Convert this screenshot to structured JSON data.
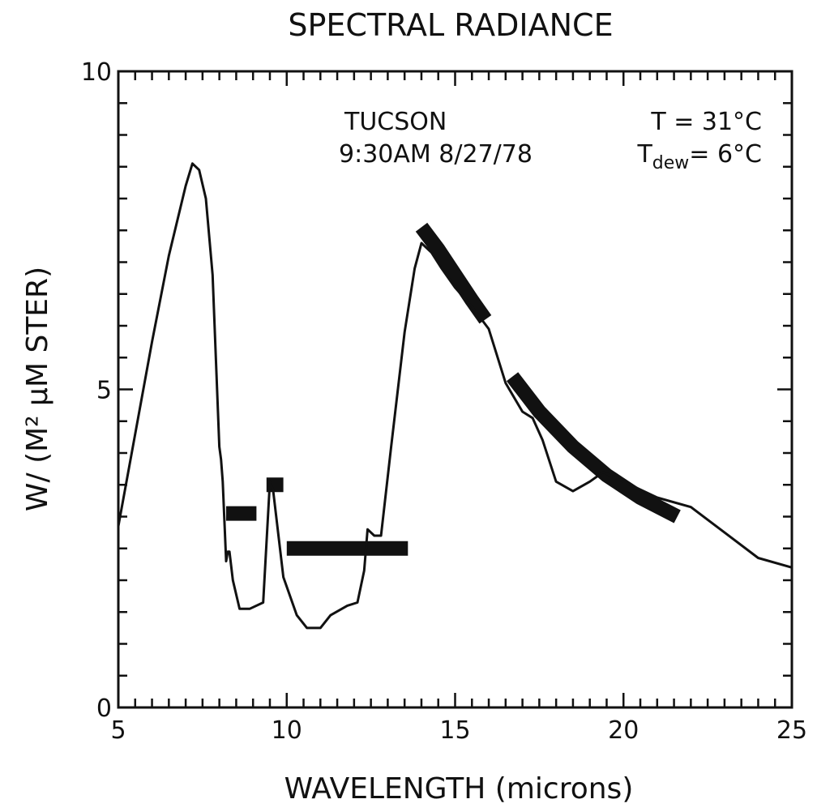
{
  "chart_data": {
    "type": "line",
    "title": "SPECTRAL RADIANCE",
    "xlabel": "WAVELENGTH (microns)",
    "ylabel": "W/ (M² µM STER)",
    "xlim": [
      5,
      25
    ],
    "ylim": [
      0,
      10
    ],
    "x_ticks": [
      5,
      10,
      15,
      20,
      25
    ],
    "y_ticks": [
      0,
      5,
      10
    ],
    "minor_ticks_x_step": 0.5,
    "minor_ticks_y_step": 0.5,
    "grid": false,
    "annotations": {
      "location_line1": "TUCSON",
      "location_line2": "9:30AM 8/27/78",
      "temperature": "T = 31°C",
      "dew_T": "T",
      "dew_sub": "dew",
      "dew_value": "= 6°C"
    },
    "series": [
      {
        "style": "line",
        "color": "#111111",
        "x": [
          5.0,
          5.5,
          6.0,
          6.5,
          7.0,
          7.2,
          7.4,
          7.6,
          7.8,
          8.0,
          8.05,
          8.1,
          8.2,
          8.25,
          8.3,
          8.4,
          8.6,
          8.9,
          9.3,
          9.5,
          9.6,
          9.9,
          10.3,
          10.6,
          11.0,
          11.3,
          11.8,
          12.1,
          12.3,
          12.4,
          12.6,
          12.8,
          13.1,
          13.5,
          13.8,
          14.0,
          14.3,
          14.6,
          15.0,
          15.5,
          16.0,
          16.5,
          17.0,
          17.3,
          17.6,
          18.0,
          18.5,
          19.0,
          19.4,
          20.0,
          21.0,
          22.0,
          23.0,
          24.0,
          25.0
        ],
        "y": [
          2.85,
          4.3,
          5.75,
          7.1,
          8.2,
          8.55,
          8.45,
          8.0,
          6.8,
          4.1,
          3.9,
          3.55,
          2.3,
          2.45,
          2.45,
          2.0,
          1.55,
          1.55,
          1.65,
          3.55,
          3.4,
          2.05,
          1.45,
          1.25,
          1.25,
          1.45,
          1.6,
          1.65,
          2.15,
          2.8,
          2.7,
          2.7,
          4.1,
          5.9,
          6.9,
          7.3,
          7.15,
          6.9,
          6.6,
          6.3,
          5.95,
          5.1,
          4.65,
          4.55,
          4.2,
          3.55,
          3.4,
          3.55,
          3.7,
          3.55,
          3.3,
          3.15,
          2.75,
          2.35,
          2.2
        ]
      },
      {
        "style": "band",
        "color": "#111111",
        "x": [
          8.2,
          9.1
        ],
        "y": [
          3.05,
          3.05
        ]
      },
      {
        "style": "band",
        "color": "#111111",
        "x": [
          9.4,
          9.9
        ],
        "y": [
          3.5,
          3.5
        ]
      },
      {
        "style": "band",
        "color": "#111111",
        "x": [
          10.0,
          13.6
        ],
        "y": [
          2.5,
          2.5
        ]
      },
      {
        "style": "band",
        "color": "#111111",
        "x": [
          14.0,
          14.5,
          15.0,
          15.5,
          15.9
        ],
        "y": [
          7.55,
          7.2,
          6.8,
          6.4,
          6.1
        ]
      },
      {
        "style": "band",
        "color": "#111111",
        "x": [
          16.7,
          17.5,
          18.5,
          19.5,
          20.5,
          21.6
        ],
        "y": [
          5.2,
          4.65,
          4.1,
          3.65,
          3.3,
          3.0
        ]
      }
    ]
  }
}
